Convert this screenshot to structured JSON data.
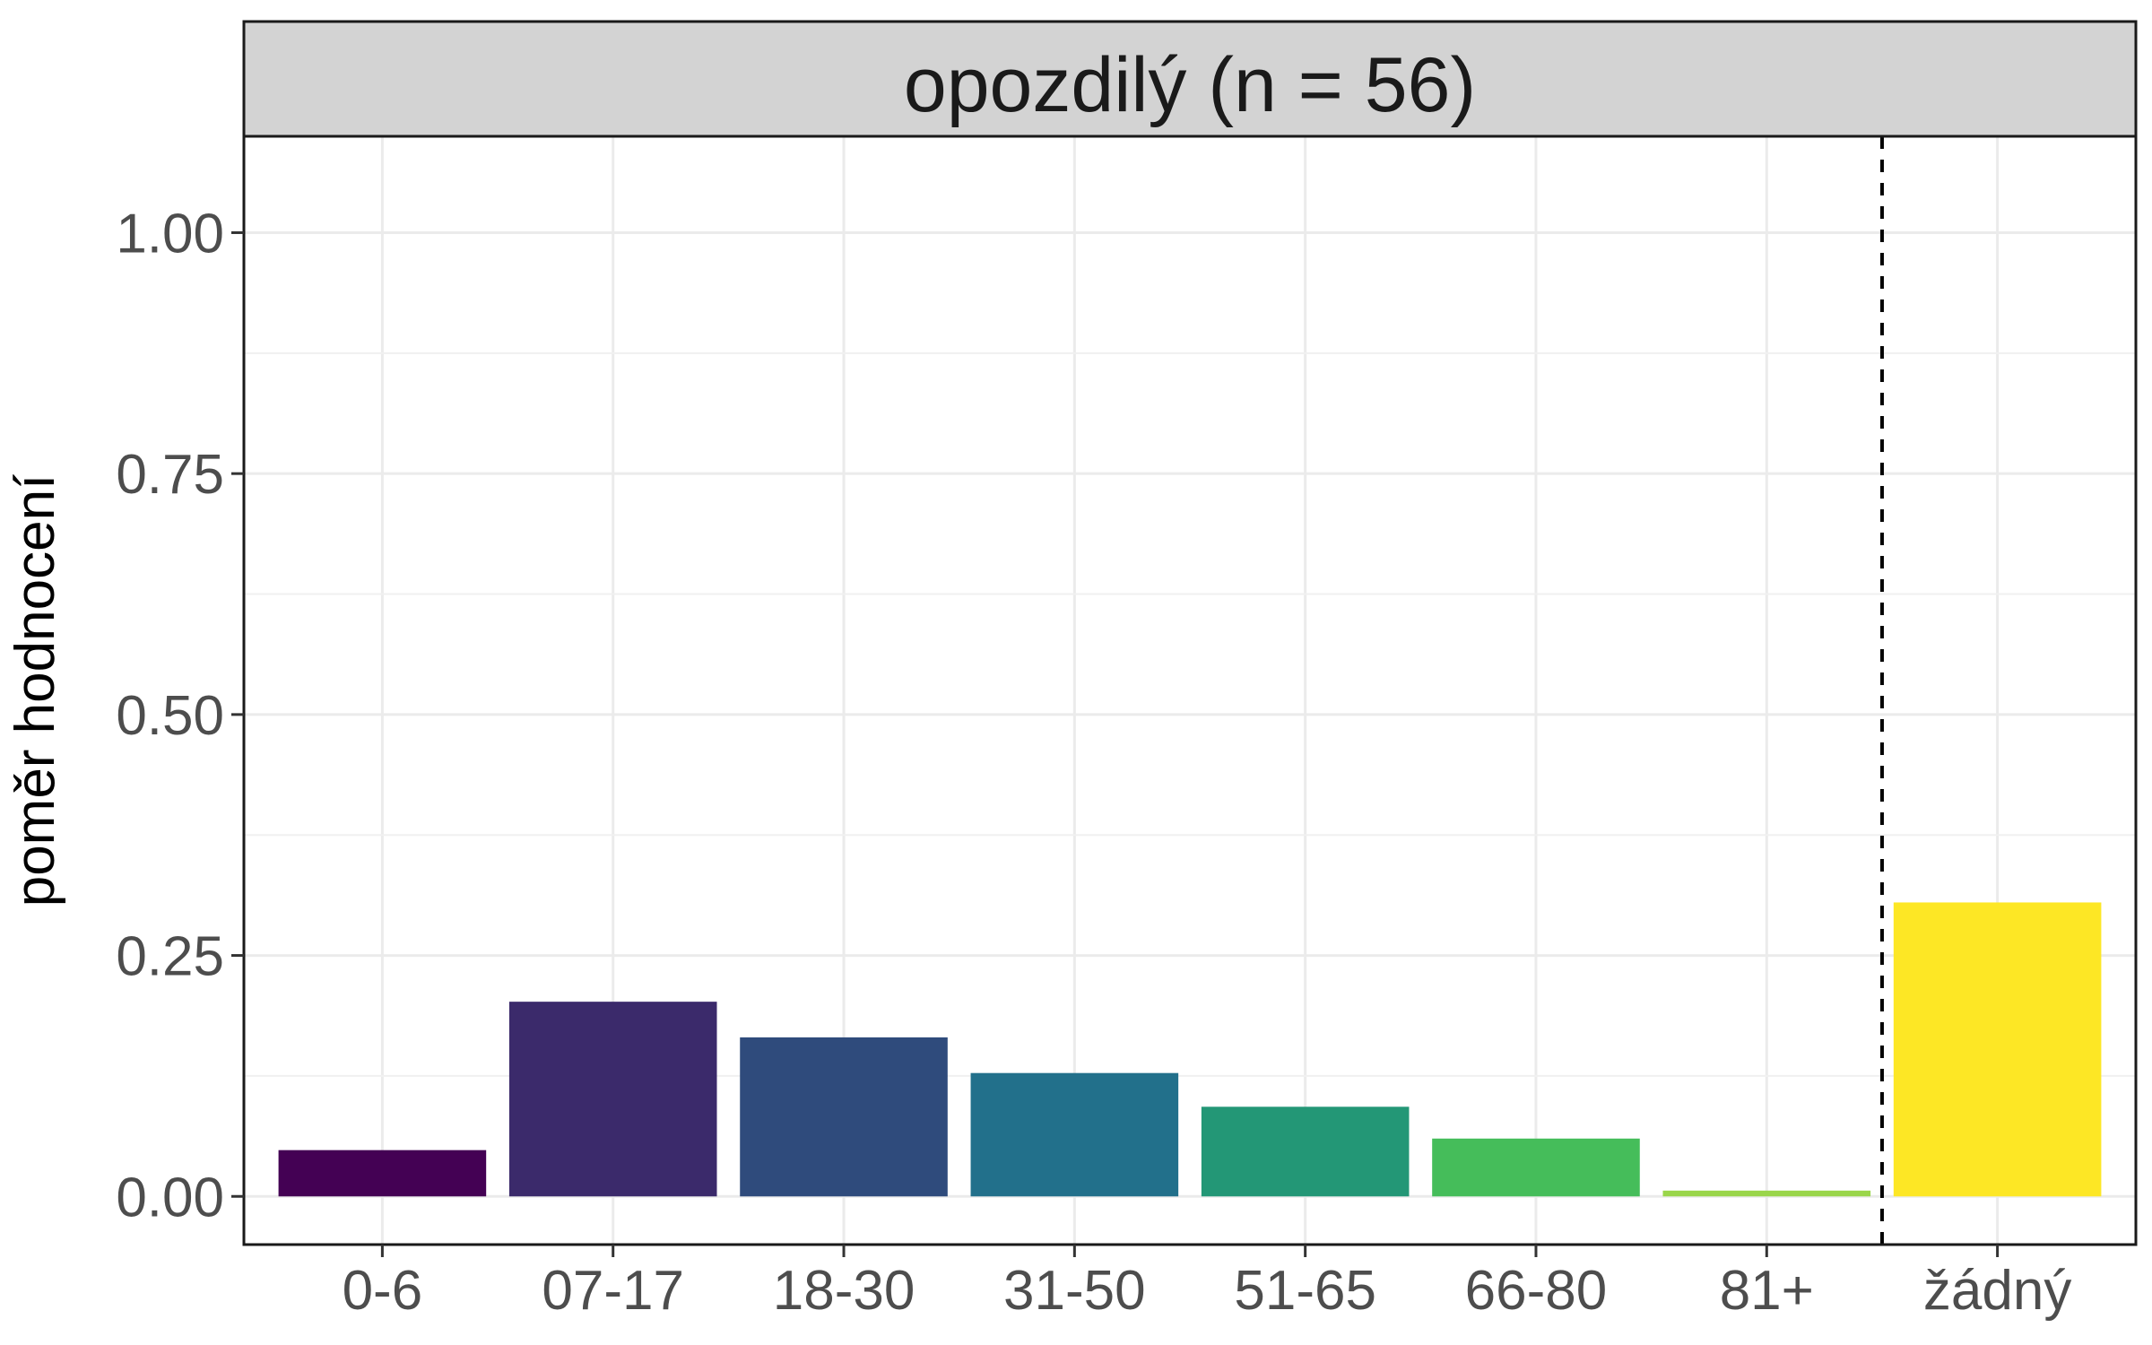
{
  "chart_data": {
    "type": "bar",
    "title": "opozdilý (n = 56)",
    "xlabel": "",
    "ylabel": "poměr hodnocení",
    "categories": [
      "0-6",
      "07-17",
      "18-30",
      "31-50",
      "51-65",
      "66-80",
      "81+",
      "žádný"
    ],
    "values": [
      0.048,
      0.202,
      0.165,
      0.128,
      0.093,
      0.06,
      0.006,
      0.305
    ],
    "colors": [
      "#440154",
      "#3b2a6b",
      "#2f4b7c",
      "#22708b",
      "#239776",
      "#45bd5a",
      "#9ad64a",
      "#fde725"
    ],
    "ylim": [
      -0.05,
      1.1
    ],
    "yticks": [
      0.0,
      0.25,
      0.5,
      0.75,
      1.0
    ],
    "ytick_labels": [
      "0.00",
      "0.25",
      "0.50",
      "0.75",
      "1.00"
    ],
    "grid": true,
    "legend": "none",
    "reference_line": {
      "between": [
        "81+",
        "žádný"
      ],
      "style": "dashed"
    }
  }
}
